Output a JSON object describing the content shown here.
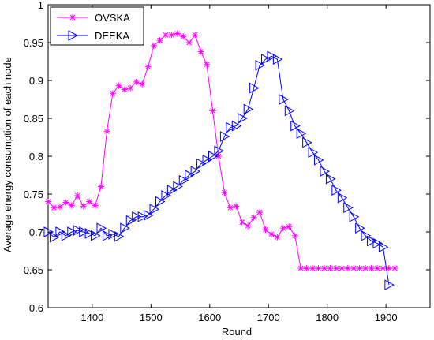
{
  "chart_data": {
    "type": "line",
    "title": "",
    "xlabel": "Round",
    "ylabel": "Average energy consumption of each node",
    "xlim": [
      1325,
      1975
    ],
    "ylim": [
      0.6,
      1.0
    ],
    "xticks": [
      1400,
      1500,
      1600,
      1700,
      1800,
      1900
    ],
    "yticks": [
      0.6,
      0.65,
      0.7,
      0.75,
      0.8,
      0.85,
      0.9,
      0.95,
      1.0
    ],
    "xtick_labels": [
      "1400",
      "1500",
      "1600",
      "1700",
      "1800",
      "1900"
    ],
    "ytick_labels": [
      "0.6",
      "0.65",
      "0.7",
      "0.75",
      "0.8",
      "0.85",
      "0.9",
      "0.95",
      "1"
    ],
    "grid": false,
    "legend_position": "top-left",
    "series": [
      {
        "name": "OVSKA",
        "color": "#ff00ff",
        "marker": "asterisk",
        "x": [
          1325,
          1335,
          1345,
          1355,
          1365,
          1375,
          1385,
          1395,
          1405,
          1415,
          1425,
          1435,
          1445,
          1455,
          1465,
          1475,
          1485,
          1495,
          1505,
          1515,
          1525,
          1535,
          1545,
          1555,
          1565,
          1575,
          1585,
          1595,
          1605,
          1615,
          1625,
          1635,
          1645,
          1655,
          1665,
          1675,
          1685,
          1695,
          1705,
          1715,
          1725,
          1735,
          1745,
          1755,
          1765,
          1775,
          1785,
          1795,
          1805,
          1815,
          1825,
          1835,
          1845,
          1855,
          1865,
          1875,
          1885,
          1895,
          1905,
          1915
        ],
        "y": [
          0.74,
          0.732,
          0.733,
          0.739,
          0.735,
          0.748,
          0.734,
          0.74,
          0.735,
          0.76,
          0.833,
          0.883,
          0.893,
          0.888,
          0.89,
          0.898,
          0.895,
          0.918,
          0.946,
          0.953,
          0.96,
          0.96,
          0.962,
          0.958,
          0.95,
          0.96,
          0.938,
          0.921,
          0.86,
          0.8,
          0.752,
          0.732,
          0.734,
          0.713,
          0.708,
          0.719,
          0.726,
          0.703,
          0.697,
          0.693,
          0.705,
          0.707,
          0.695,
          0.652,
          0.652,
          0.652,
          0.652,
          0.652,
          0.652,
          0.652,
          0.652,
          0.652,
          0.652,
          0.652,
          0.652,
          0.652,
          0.652,
          0.652,
          0.652,
          0.652
        ]
      },
      {
        "name": "DEEKA",
        "color": "#0000ff",
        "marker": "triangle-right",
        "x": [
          1325,
          1335,
          1345,
          1355,
          1365,
          1375,
          1385,
          1395,
          1405,
          1415,
          1425,
          1435,
          1445,
          1455,
          1465,
          1475,
          1485,
          1495,
          1505,
          1515,
          1525,
          1535,
          1545,
          1555,
          1565,
          1575,
          1585,
          1595,
          1605,
          1615,
          1625,
          1635,
          1645,
          1655,
          1665,
          1675,
          1685,
          1695,
          1705,
          1715,
          1725,
          1735,
          1745,
          1755,
          1765,
          1775,
          1785,
          1795,
          1805,
          1815,
          1825,
          1835,
          1845,
          1855,
          1865,
          1875,
          1885,
          1895,
          1905
        ],
        "y": [
          0.7,
          0.693,
          0.7,
          0.695,
          0.7,
          0.702,
          0.7,
          0.698,
          0.695,
          0.705,
          0.695,
          0.697,
          0.694,
          0.705,
          0.715,
          0.72,
          0.72,
          0.722,
          0.73,
          0.74,
          0.748,
          0.755,
          0.76,
          0.768,
          0.775,
          0.78,
          0.79,
          0.795,
          0.8,
          0.807,
          0.826,
          0.838,
          0.84,
          0.85,
          0.862,
          0.89,
          0.92,
          0.928,
          0.932,
          0.928,
          0.875,
          0.86,
          0.84,
          0.83,
          0.818,
          0.805,
          0.795,
          0.78,
          0.77,
          0.755,
          0.745,
          0.732,
          0.72,
          0.705,
          0.695,
          0.688,
          0.685,
          0.68,
          0.63
        ]
      }
    ]
  }
}
